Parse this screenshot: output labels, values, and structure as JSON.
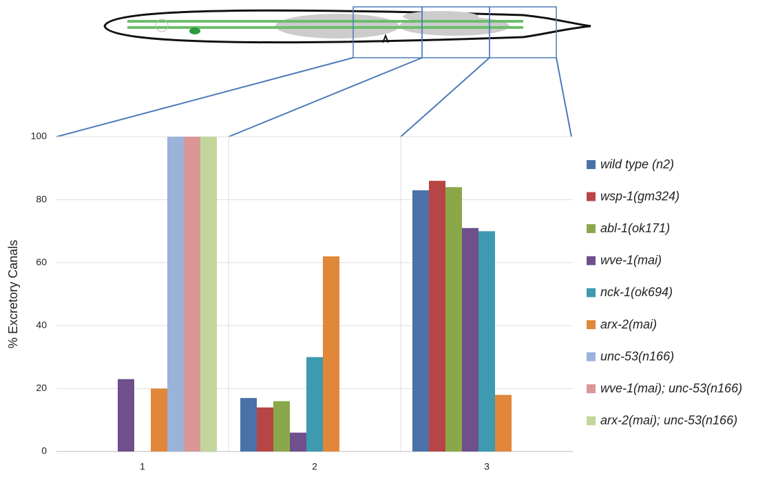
{
  "chart_data": {
    "type": "bar",
    "y_label": "% Excretory Canals",
    "categories": [
      "1",
      "2",
      "3"
    ],
    "ylim": [
      0,
      100
    ],
    "yticks": [
      0,
      20,
      40,
      60,
      80,
      100
    ],
    "grid": true,
    "series": [
      {
        "name": "wild type (n2)",
        "color": "#4a72a8",
        "values": [
          0,
          17,
          83
        ]
      },
      {
        "name": "wsp-1(gm324)",
        "color": "#b84545",
        "values": [
          0,
          14,
          86
        ]
      },
      {
        "name": "abl-1(ok171)",
        "color": "#8aa84a",
        "values": [
          0,
          16,
          84
        ]
      },
      {
        "name": "wve-1(mai)",
        "color": "#6f4f8c",
        "values": [
          23,
          6,
          71
        ]
      },
      {
        "name": "nck-1(ok694)",
        "color": "#3e9ab0",
        "values": [
          0,
          30,
          70
        ]
      },
      {
        "name": "arx-2(mai)",
        "color": "#e0873a",
        "values": [
          20,
          62,
          18
        ]
      },
      {
        "name": "unc-53(n166)",
        "color": "#9bb2d9",
        "values": [
          100,
          0,
          0
        ]
      },
      {
        "name": "wve-1(mai); unc-53(n166)",
        "color": "#d99695",
        "values": [
          100,
          0,
          0
        ]
      },
      {
        "name": "arx-2(mai); unc-53(n166)",
        "color": "#c2d69b",
        "values": [
          100,
          0,
          0
        ]
      }
    ]
  }
}
